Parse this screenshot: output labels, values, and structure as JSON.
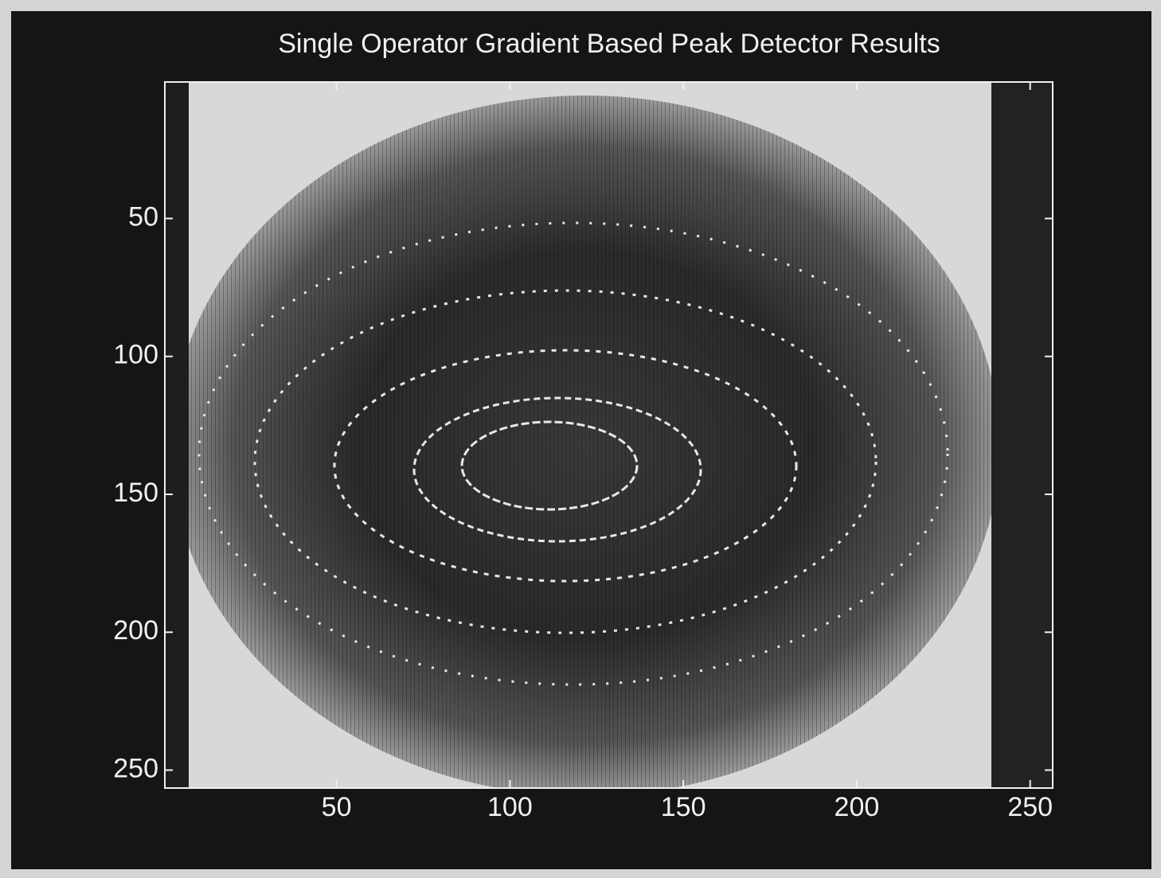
{
  "chart_data": {
    "type": "image",
    "title": "Single Operator Gradient Based Peak Detector Results",
    "xlim": [
      0.5,
      256.5
    ],
    "xticks": [
      50,
      100,
      150,
      200,
      250
    ],
    "ylim": [
      0.5,
      256.5
    ],
    "yticks": [
      50,
      100,
      150,
      200,
      250
    ],
    "y_reversed": true
  }
}
